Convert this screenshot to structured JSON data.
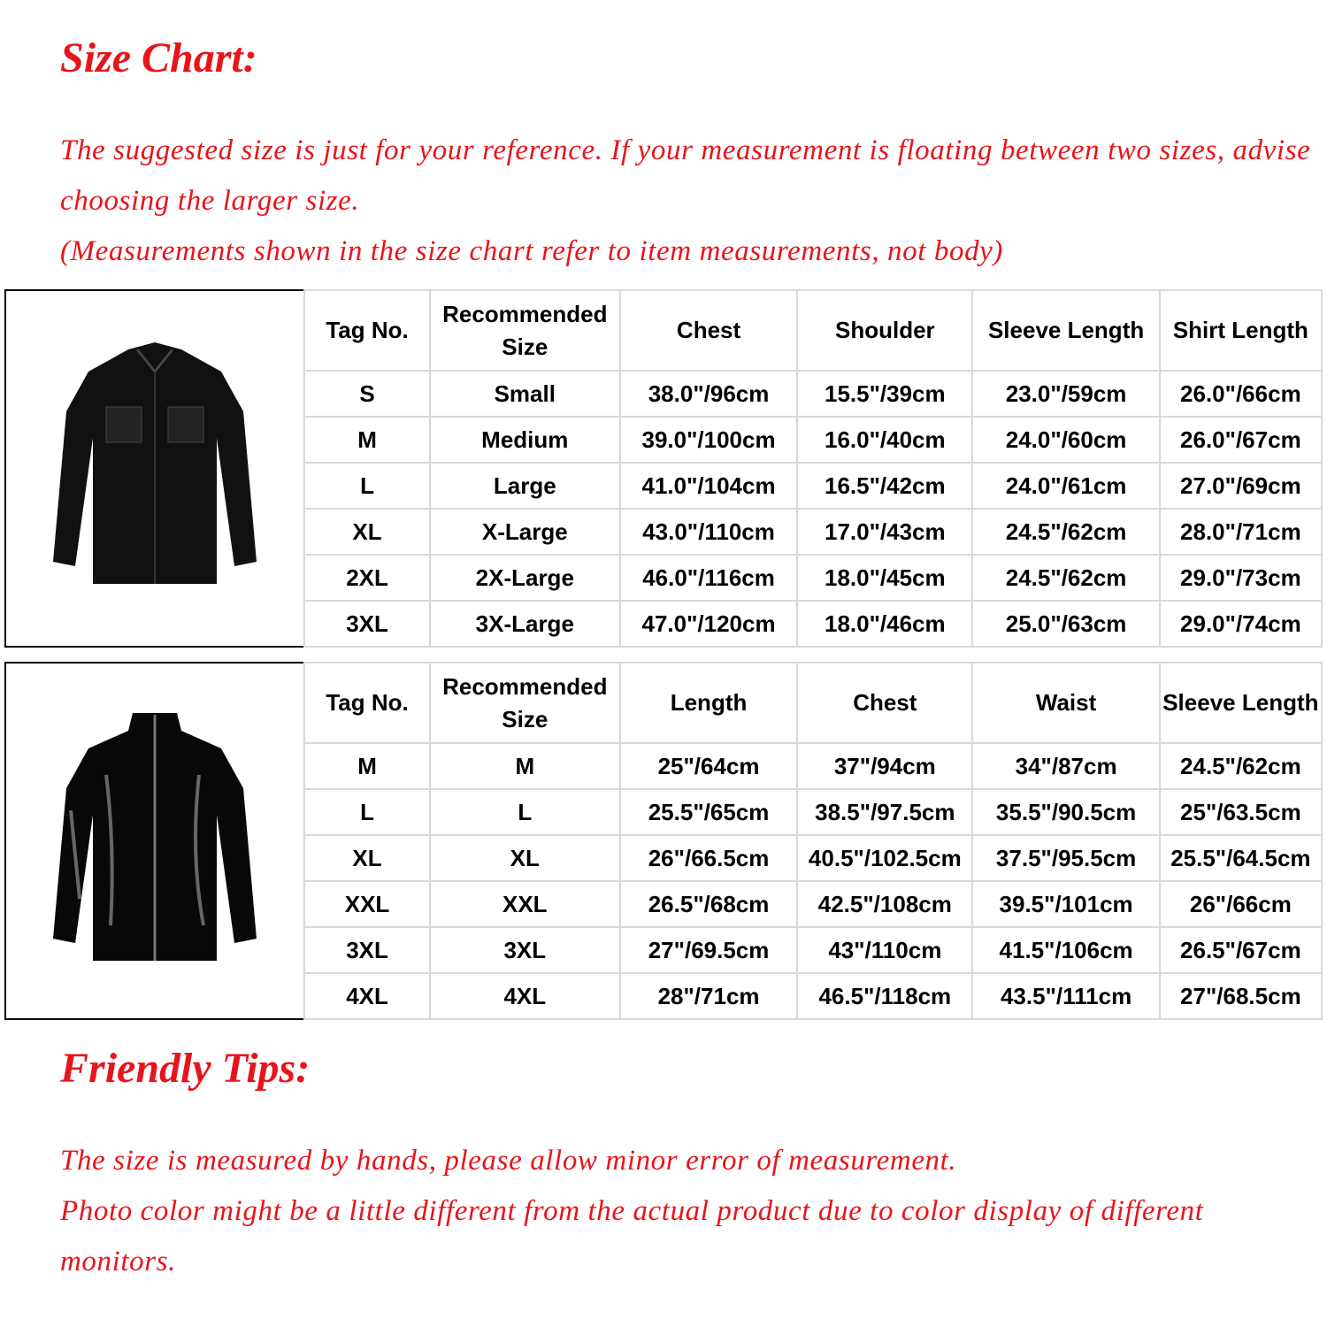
{
  "header": {
    "title": "Size Chart:",
    "notes": [
      "The suggested size is just for your reference. If your measurement is floating between two sizes, advise choosing the larger size.",
      "(Measurements shown in the size chart refer to item measurements, not body)"
    ]
  },
  "tables": [
    {
      "headers": [
        "Tag No.",
        "Recommended Size",
        "Chest",
        "Shoulder",
        "Sleeve Length",
        "Shirt Length"
      ],
      "rows": [
        [
          "S",
          "Small",
          "38.0\"/96cm",
          "15.5\"/39cm",
          "23.0\"/59cm",
          "26.0\"/66cm"
        ],
        [
          "M",
          "Medium",
          "39.0\"/100cm",
          "16.0\"/40cm",
          "24.0\"/60cm",
          "26.0\"/67cm"
        ],
        [
          "L",
          "Large",
          "41.0\"/104cm",
          "16.5\"/42cm",
          "24.0\"/61cm",
          "27.0\"/69cm"
        ],
        [
          "XL",
          "X-Large",
          "43.0\"/110cm",
          "17.0\"/43cm",
          "24.5\"/62cm",
          "28.0\"/71cm"
        ],
        [
          "2XL",
          "2X-Large",
          "46.0\"/116cm",
          "18.0\"/45cm",
          "24.5\"/62cm",
          "29.0\"/73cm"
        ],
        [
          "3XL",
          "3X-Large",
          "47.0\"/120cm",
          "18.0\"/46cm",
          "25.0\"/63cm",
          "29.0\"/74cm"
        ]
      ]
    },
    {
      "headers": [
        "Tag No.",
        "Recommended Size",
        "Length",
        "Chest",
        "Waist",
        "Sleeve Length"
      ],
      "rows": [
        [
          "M",
          "M",
          "25\"/64cm",
          "37\"/94cm",
          "34\"/87cm",
          "24.5\"/62cm"
        ],
        [
          "L",
          "L",
          "25.5\"/65cm",
          "38.5\"/97.5cm",
          "35.5\"/90.5cm",
          "25\"/63.5cm"
        ],
        [
          "XL",
          "XL",
          "26\"/66.5cm",
          "40.5\"/102.5cm",
          "37.5\"/95.5cm",
          "25.5\"/64.5cm"
        ],
        [
          "XXL",
          "XXL",
          "26.5\"/68cm",
          "42.5\"/108cm",
          "39.5\"/101cm",
          "26\"/66cm"
        ],
        [
          "3XL",
          "3XL",
          "27\"/69.5cm",
          "43\"/110cm",
          "41.5\"/106cm",
          "26.5\"/67cm"
        ],
        [
          "4XL",
          "4XL",
          "28\"/71cm",
          "46.5\"/118cm",
          "43.5\"/111cm",
          "27\"/68.5cm"
        ]
      ]
    }
  ],
  "tips": {
    "title": "Friendly Tips:",
    "notes": [
      "The size is measured by hands, please allow minor error of measurement.",
      "Photo color might be a little different from the actual product due to color display of different monitors."
    ]
  }
}
